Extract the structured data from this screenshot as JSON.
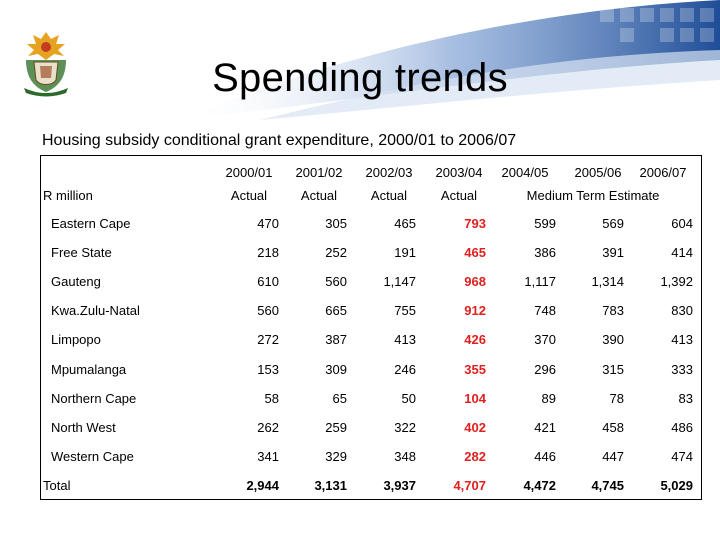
{
  "title": "Spending trends",
  "subtitle": "Housing subsidy conditional grant expenditure, 2000/01 to 2006/07",
  "table": {
    "unit_label": "R million",
    "years": [
      "2000/01",
      "2001/02",
      "2002/03",
      "2003/04",
      "2004/05",
      "2005/06",
      "2006/07"
    ],
    "actual_label": "Actual",
    "mte_label": "Medium Term Estimate",
    "rows": [
      {
        "label": "Eastern Cape",
        "values": [
          "470",
          "305",
          "465",
          "793",
          "599",
          "569",
          "604"
        ]
      },
      {
        "label": "Free State",
        "values": [
          "218",
          "252",
          "191",
          "465",
          "386",
          "391",
          "414"
        ]
      },
      {
        "label": "Gauteng",
        "values": [
          "610",
          "560",
          "1,147",
          "968",
          "1,117",
          "1,314",
          "1,392"
        ]
      },
      {
        "label": "Kwa.Zulu-Natal",
        "values": [
          "560",
          "665",
          "755",
          "912",
          "748",
          "783",
          "830"
        ]
      },
      {
        "label": "Limpopo",
        "values": [
          "272",
          "387",
          "413",
          "426",
          "370",
          "390",
          "413"
        ]
      },
      {
        "label": "Mpumalanga",
        "values": [
          "153",
          "309",
          "246",
          "355",
          "296",
          "315",
          "333"
        ]
      },
      {
        "label": "Northern Cape",
        "values": [
          "58",
          "65",
          "50",
          "104",
          "89",
          "78",
          "83"
        ]
      },
      {
        "label": "North West",
        "values": [
          "262",
          "259",
          "322",
          "402",
          "421",
          "458",
          "486"
        ]
      },
      {
        "label": "Western Cape",
        "values": [
          "341",
          "329",
          "348",
          "282",
          "446",
          "447",
          "474"
        ]
      }
    ],
    "total": {
      "label": "Total",
      "values": [
        "2,944",
        "3,131",
        "3,937",
        "4,707",
        "4,472",
        "4,745",
        "5,029"
      ]
    }
  },
  "colors": {
    "highlight": "#e02020",
    "header_blue": "#2f5fa8"
  }
}
